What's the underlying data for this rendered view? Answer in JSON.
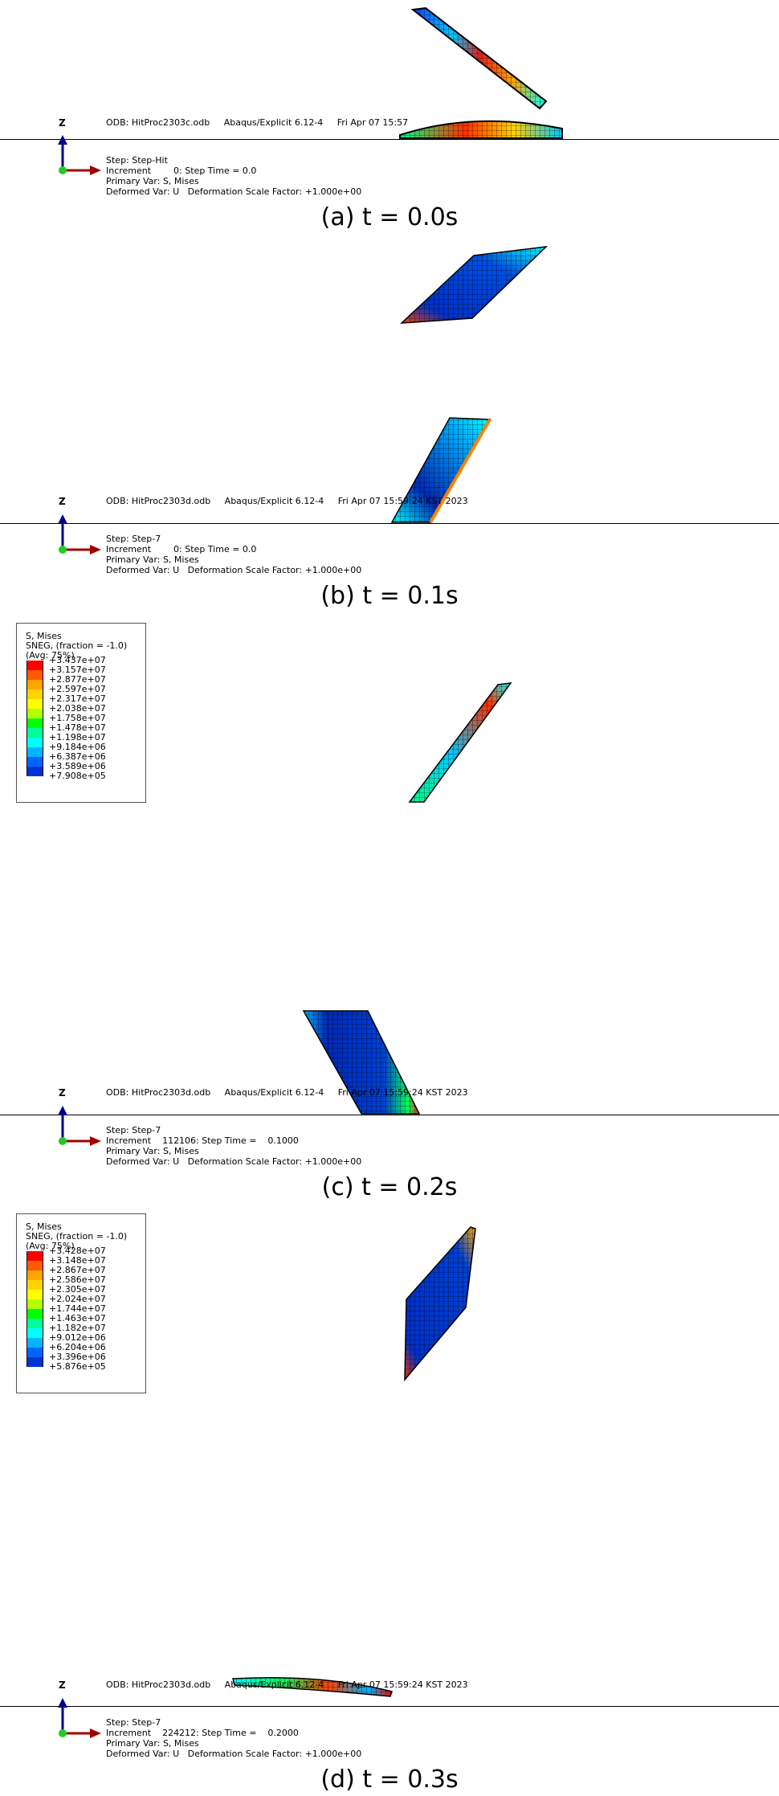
{
  "panels": [
    {
      "header": "ODB: HitProc2303c.odb     Abaqus/Explicit 6.12-4     Fri Apr 07 15:57",
      "step": "Step: Step-Hit",
      "increment": "Increment        0: Step Time = 0.0",
      "primary": "Primary Var: S, Mises",
      "deformed": "Deformed Var: U   Deformation Scale Factor: +1.000e+00",
      "caption": "(a) t = 0.0s"
    },
    {
      "header": "ODB: HitProc2303d.odb     Abaqus/Explicit 6.12-4     Fri Apr 07 15:59:24 KST 2023",
      "step": "Step: Step-7",
      "increment": "Increment        0: Step Time = 0.0",
      "primary": "Primary Var: S, Mises",
      "deformed": "Deformed Var: U   Deformation Scale Factor: +1.000e+00",
      "caption": "(b) t = 0.1s"
    },
    {
      "header": "ODB: HitProc2303d.odb     Abaqus/Explicit 6.12-4     Fri Apr 07 15:59:24 KST 2023",
      "step": "Step: Step-7",
      "increment": "Increment    112106: Step Time =    0.1000",
      "primary": "Primary Var: S, Mises",
      "deformed": "Deformed Var: U   Deformation Scale Factor: +1.000e+00",
      "caption": "(c) t = 0.2s"
    },
    {
      "header": "ODB: HitProc2303d.odb     Abaqus/Explicit 6.12-4     Fri Apr 07 15:59:24 KST 2023",
      "step": "Step: Step-7",
      "increment": "Increment    224212: Step Time =    0.2000",
      "primary": "Primary Var: S, Mises",
      "deformed": "Deformed Var: U   Deformation Scale Factor: +1.000e+00",
      "caption": "(d) t = 0.3s"
    }
  ],
  "triad": {
    "z": "Z",
    "x": "X"
  },
  "legends": [
    {
      "title": "S, Mises",
      "subtitle": "SNEG, (fraction = -1.0)",
      "avg": "(Avg: 75%)",
      "values": [
        "+3.437e+07",
        "+3.157e+07",
        "+2.877e+07",
        "+2.597e+07",
        "+2.317e+07",
        "+2.038e+07",
        "+1.758e+07",
        "+1.478e+07",
        "+1.198e+07",
        "+9.184e+06",
        "+6.387e+06",
        "+3.589e+06",
        "+7.908e+05"
      ]
    },
    {
      "title": "S, Mises",
      "subtitle": "SNEG, (fraction = -1.0)",
      "avg": "(Avg: 75%)",
      "values": [
        "+3.428e+07",
        "+3.148e+07",
        "+2.867e+07",
        "+2.586e+07",
        "+2.305e+07",
        "+2.024e+07",
        "+1.744e+07",
        "+1.463e+07",
        "+1.182e+07",
        "+9.012e+06",
        "+6.204e+06",
        "+3.396e+06",
        "+5.876e+05"
      ]
    }
  ],
  "colormap": [
    "#ff0000",
    "#ff5a00",
    "#ffa500",
    "#ffd200",
    "#ffff00",
    "#b4ff00",
    "#00ff00",
    "#00ff9a",
    "#00ffff",
    "#00b4ff",
    "#0064ff",
    "#0032d2",
    "#0000c8"
  ]
}
